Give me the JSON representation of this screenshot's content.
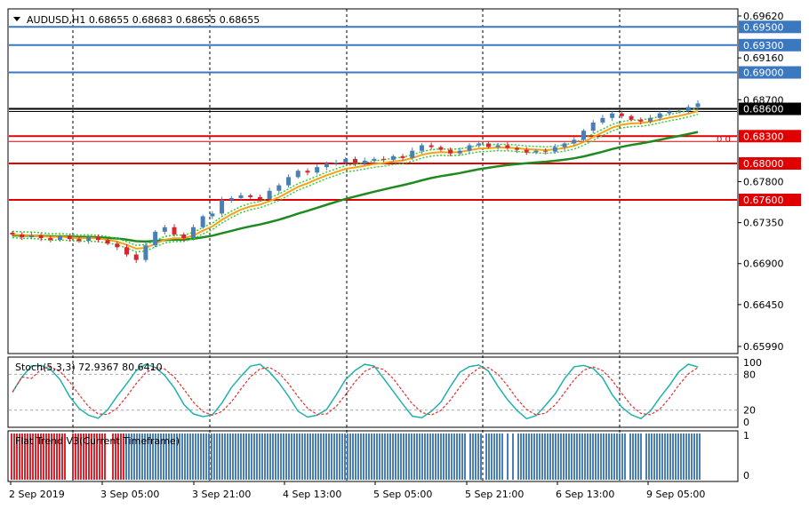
{
  "chart": {
    "header": "AUDUSD,H1  0.68655 0.68683 0.68655 0.68655",
    "fib_label": "0.0",
    "price_axis": [
      "0.69620",
      "0.69160",
      "0.68700",
      "0.67800",
      "0.67350",
      "0.66900",
      "0.66450",
      "0.65990"
    ],
    "level_tags": [
      {
        "text": "0.69500",
        "price": 0.695,
        "bg": "#3c78c0",
        "fg": "#ffffff"
      },
      {
        "text": "0.69300",
        "price": 0.693,
        "bg": "#3c78c0",
        "fg": "#ffffff"
      },
      {
        "text": "0.69000",
        "price": 0.69,
        "bg": "#3c78c0",
        "fg": "#ffffff"
      },
      {
        "text": "0.68600",
        "price": 0.686,
        "bg": "#000000",
        "fg": "#ffffff"
      },
      {
        "text": "0.68300",
        "price": 0.683,
        "bg": "#e00000",
        "fg": "#ffffff"
      },
      {
        "text": "0.68000",
        "price": 0.68,
        "bg": "#e00000",
        "fg": "#ffffff"
      },
      {
        "text": "0.67600",
        "price": 0.676,
        "bg": "#e00000",
        "fg": "#ffffff"
      }
    ],
    "stoch_label": "Stoch(5,3,3) 72.9367 80.6410",
    "stoch_axis": [
      "100",
      "80",
      "20",
      "0"
    ],
    "trend_label": "Flat Trend V3(Current Timeframe)",
    "trend_axis": [
      "1",
      "0"
    ],
    "time_axis": [
      "2 Sep 2019",
      "3 Sep 05:00",
      "3 Sep 21:00",
      "4 Sep 13:00",
      "5 Sep 05:00",
      "5 Sep 21:00",
      "6 Sep 13:00",
      "9 Sep 05:00"
    ],
    "colors": {
      "bull": "#4a7fb5",
      "bear": "#d7262f",
      "support": "#e00000",
      "resistance": "#3c78c0",
      "ma_fast": "#f5a21b",
      "ma_slow": "#1f8a1f",
      "envelope": "#32cd32",
      "stoch_main": "#20b2aa",
      "stoch_signal": "#e03030"
    }
  },
  "chart_data": {
    "type": "candlestick",
    "symbol": "AUDUSD",
    "timeframe": "H1",
    "ohlc_header": {
      "open": 0.68655,
      "high": 0.68683,
      "low": 0.68655,
      "close": 0.68655
    },
    "close_series": [
      0.6722,
      0.6719,
      0.6721,
      0.6718,
      0.6716,
      0.672,
      0.6717,
      0.6715,
      0.6719,
      0.6716,
      0.6712,
      0.6708,
      0.67,
      0.6694,
      0.671,
      0.6725,
      0.673,
      0.6722,
      0.6718,
      0.673,
      0.6742,
      0.6745,
      0.676,
      0.6762,
      0.6765,
      0.6763,
      0.6761,
      0.677,
      0.6776,
      0.6785,
      0.6792,
      0.679,
      0.6796,
      0.68,
      0.6801,
      0.6805,
      0.68,
      0.6803,
      0.6805,
      0.6804,
      0.6808,
      0.6806,
      0.6814,
      0.682,
      0.6818,
      0.6815,
      0.6811,
      0.6814,
      0.682,
      0.6822,
      0.6818,
      0.682,
      0.6817,
      0.6815,
      0.6812,
      0.6814,
      0.6813,
      0.6818,
      0.6822,
      0.6826,
      0.6836,
      0.6845,
      0.685,
      0.6855,
      0.6852,
      0.6848,
      0.6846,
      0.685,
      0.6855,
      0.6857,
      0.6858,
      0.6862,
      0.6866
    ],
    "support_resistance": [
      0.695,
      0.693,
      0.69,
      0.686,
      0.683,
      0.68,
      0.676
    ],
    "stochastic": {
      "k": 72.9367,
      "d": 80.641,
      "levels": [
        80,
        20
      ]
    },
    "ylim": [
      0.6599,
      0.6962
    ]
  }
}
